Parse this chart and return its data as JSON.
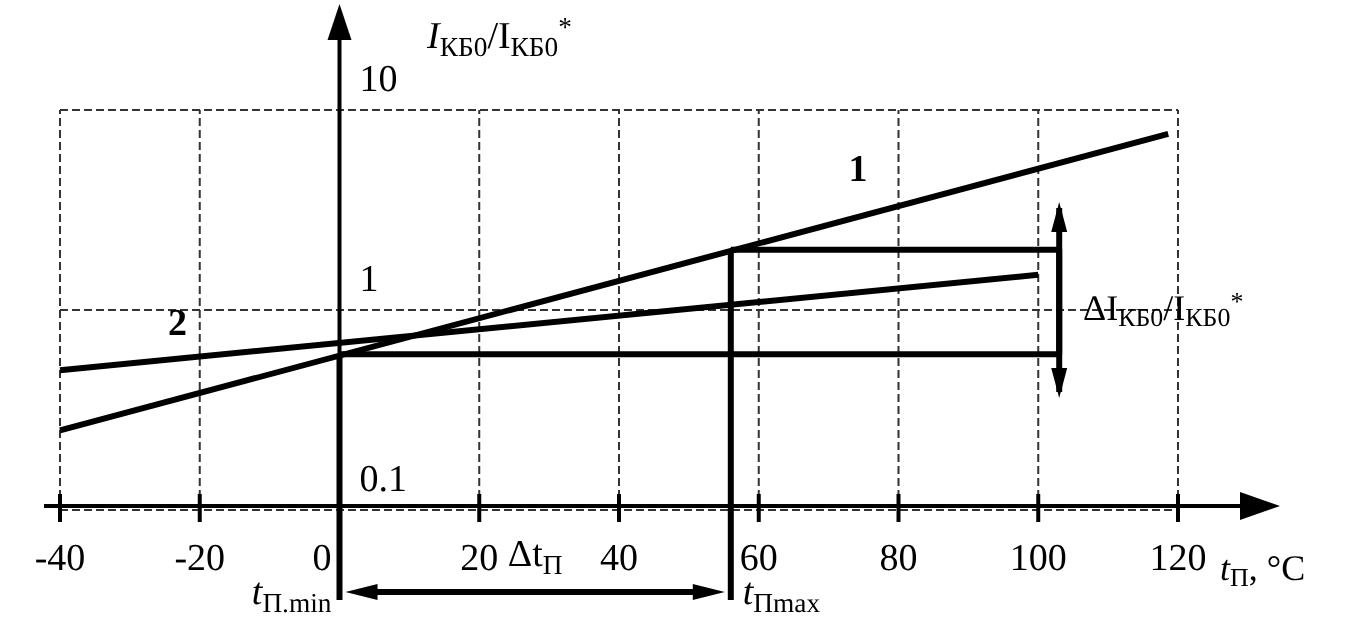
{
  "chart_data": {
    "type": "line",
    "xlabel": "t$_{П}$, °C",
    "ylabel": "I$_{КБ0}$/I$_{КБ0}$$^{*}$",
    "log": "y",
    "grid": true,
    "line_style": "solid",
    "marker": "none",
    "xlim": [
      -40,
      120
    ],
    "xticks": [
      -40,
      -20,
      0,
      20,
      40,
      60,
      80,
      100,
      120
    ],
    "ylim": [
      0.1,
      10
    ],
    "yticks": [
      0.1,
      1,
      10
    ],
    "series": [
      {
        "name": "1",
        "color": "#000000",
        "x": [
          -40,
          118.6
        ],
        "values": [
          0.25,
          7.6
        ]
      },
      {
        "name": "2",
        "color": "#000000",
        "x": [
          -40,
          100
        ],
        "values": [
          0.5,
          1.5
        ]
      },
      {
        "color": "#000000",
        "x": [
          0,
          103,
          103,
          56
        ],
        "values": [
          0.6,
          0.6,
          2.0,
          2.0
        ]
      }
    ],
    "ref_lines": [
      {
        "axis": "x",
        "value": 0,
        "label": "t$_{П.min}$"
      },
      {
        "axis": "x",
        "value": 56,
        "label": "t$_{Пmax}$"
      }
    ],
    "annotations": [
      "Δt$_{П}$",
      "ΔI$_{КБ0}$/I$_{КБ0}$$^{*}$"
    ]
  }
}
